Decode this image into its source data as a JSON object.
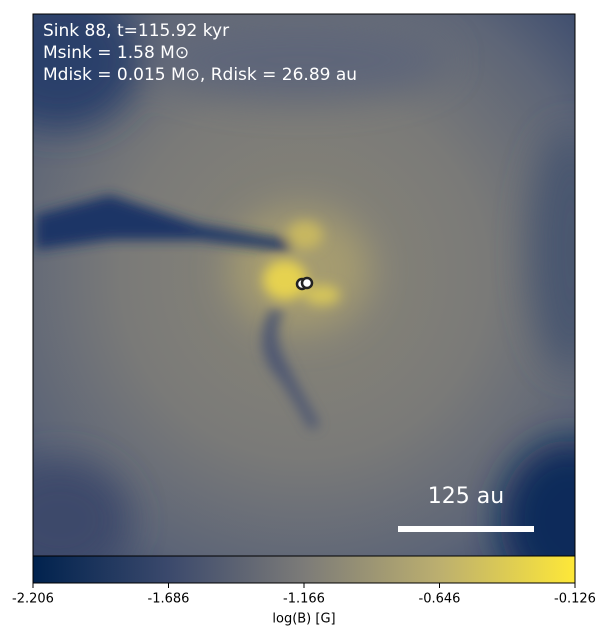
{
  "chart_data": {
    "type": "heatmap",
    "annotations": [
      "Sink 88, t=115.92 kyr",
      "Msink = 1.58 M⊙",
      "Mdisk = 0.015 M⊙, Rdisk = 26.89 au"
    ],
    "scale_bar_label": "125 au",
    "colorbar_label": "log(B) [G]",
    "colormap": [
      "#00224e",
      "#3b496c",
      "#7c7b78",
      "#bcaf6f",
      "#fee838"
    ],
    "clim": [
      -2.206,
      -0.126
    ],
    "cticks": [
      -2.206,
      -1.686,
      -1.166,
      -0.646,
      -0.126
    ]
  }
}
